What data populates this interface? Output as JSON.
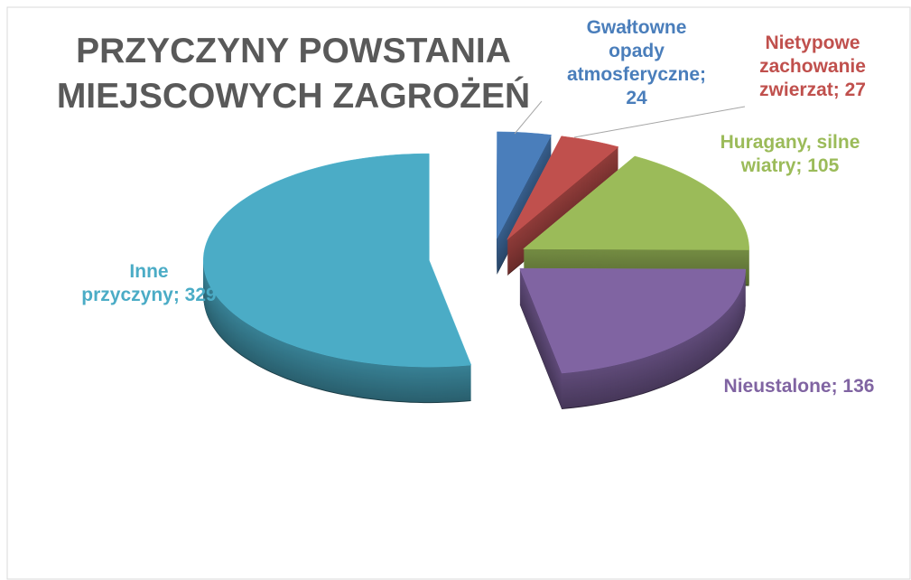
{
  "chart_data": {
    "type": "pie3d",
    "title": "PRZYCZYNY POWSTANIA MIEJSCOWYCH ZAGROŻEŃ",
    "categories": [
      "Gwałtowne opady atmosferyczne",
      "Nietypowe zachowanie zwierzat",
      "Huragany, silne wiatry",
      "Nieustalone",
      "Inne przyczyny"
    ],
    "values": [
      24,
      27,
      105,
      136,
      329
    ],
    "colors": [
      "#4a7ebb",
      "#c0504d",
      "#9bbb59",
      "#8064a2",
      "#4bacc6"
    ],
    "label_separator": "; "
  }
}
